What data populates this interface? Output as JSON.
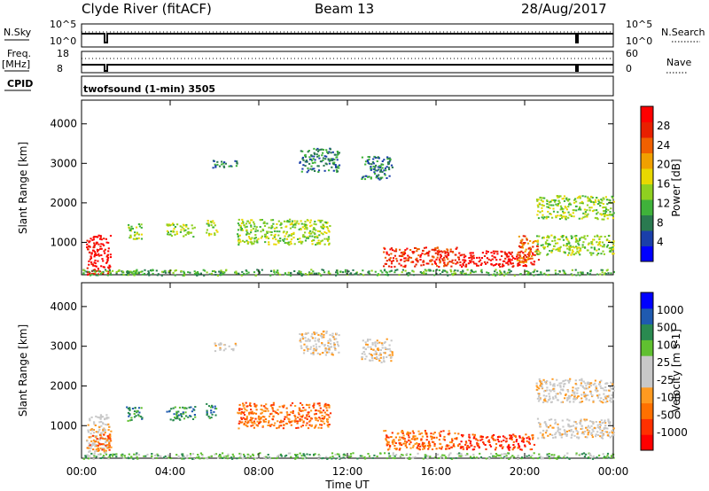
{
  "header": {
    "radar": "Clyde River (fitACF)",
    "beam": "Beam 13",
    "date": "28/Aug/2017"
  },
  "top_panels": {
    "nsky_label": "N.Sky",
    "nsky_ticks": [
      "10^5",
      "10^0"
    ],
    "nsearch_label": "N.Search",
    "nsearch_ticks": [
      "10^5",
      "10^0"
    ],
    "freq_label": "Freq.",
    "freq_unit": "[MHz]",
    "freq_ticks": [
      "18",
      "8"
    ],
    "nave_label": "Nave",
    "nave_ticks": [
      "60",
      "0"
    ],
    "cpid_label": "CPID",
    "cpid_text": "twofsound (1-min) 3505"
  },
  "chart_data": [
    {
      "type": "heatmap",
      "name": "power",
      "ylabel": "Slant Range [km]",
      "yticks": [
        "1000",
        "2000",
        "3000",
        "4000"
      ],
      "ylim": [
        180,
        4600
      ],
      "xlim": [
        0,
        24
      ],
      "colorbar_label": "Power [dB]",
      "colorbar_ticks": [
        "28",
        "24",
        "20",
        "16",
        "12",
        "8",
        "4"
      ],
      "colorbar_colors": [
        "#0000ff",
        "#1a3faa",
        "#2a7a50",
        "#3fb23a",
        "#8fd020",
        "#e8d800",
        "#f0a000",
        "#f06000",
        "#e82000",
        "#ff0000"
      ],
      "blobs": [
        {
          "t0": 0.2,
          "t1": 1.3,
          "r0": 200,
          "r1": 1200,
          "level": 9
        },
        {
          "t0": 1.8,
          "t1": 2.6,
          "r0": 200,
          "r1": 300,
          "level": 3
        },
        {
          "t0": 2.0,
          "t1": 2.7,
          "r0": 1100,
          "r1": 1500,
          "level": 4
        },
        {
          "t0": 3.8,
          "t1": 5.1,
          "r0": 1150,
          "r1": 1500,
          "level": 4
        },
        {
          "t0": 5.6,
          "t1": 6.1,
          "r0": 1200,
          "r1": 1600,
          "level": 4
        },
        {
          "t0": 7.0,
          "t1": 11.2,
          "r0": 950,
          "r1": 1600,
          "level": 4
        },
        {
          "t0": 5.9,
          "t1": 7.0,
          "r0": 2900,
          "r1": 3100,
          "level": 2
        },
        {
          "t0": 9.8,
          "t1": 11.6,
          "r0": 2800,
          "r1": 3400,
          "level": 2
        },
        {
          "t0": 12.6,
          "t1": 14.0,
          "r0": 2600,
          "r1": 3200,
          "level": 2
        },
        {
          "t0": 13.6,
          "t1": 17.0,
          "r0": 400,
          "r1": 900,
          "level": 8
        },
        {
          "t0": 17.0,
          "t1": 20.4,
          "r0": 400,
          "r1": 800,
          "level": 9
        },
        {
          "t0": 19.6,
          "t1": 20.6,
          "r0": 500,
          "r1": 1200,
          "level": 7
        },
        {
          "t0": 20.5,
          "t1": 24.0,
          "r0": 700,
          "r1": 1200,
          "level": 4
        },
        {
          "t0": 20.5,
          "t1": 24.0,
          "r0": 1600,
          "r1": 2200,
          "level": 4
        },
        {
          "t0": 0.0,
          "t1": 24.0,
          "r0": 180,
          "r1": 330,
          "level": 3
        }
      ]
    },
    {
      "type": "heatmap",
      "name": "velocity",
      "ylabel": "Slant Range [km]",
      "yticks": [
        "1000",
        "2000",
        "3000",
        "4000"
      ],
      "ylim": [
        180,
        4600
      ],
      "xlim": [
        0,
        24
      ],
      "xticks": [
        "00:00",
        "04:00",
        "08:00",
        "12:00",
        "16:00",
        "20:00",
        "00:00"
      ],
      "xlabel": "Time UT",
      "colorbar_label": "Velocity [m s-1]",
      "colorbar_ticks": [
        "1000",
        "500",
        "100",
        "25",
        "-25",
        "-100",
        "-500",
        "-1000"
      ],
      "colorbar_colors": [
        "#ff0000",
        "#ff3000",
        "#ff7000",
        "#ff9a20",
        "#c8c8c8",
        "#c8c8c8",
        "#60c030",
        "#2a8a50",
        "#1f5ab0",
        "#0000ff"
      ],
      "blobs": [
        {
          "t0": 0.2,
          "t1": 1.3,
          "r0": 200,
          "r1": 1300,
          "level": 4
        },
        {
          "t0": 0.2,
          "t1": 1.3,
          "r0": 400,
          "r1": 800,
          "level": 2
        },
        {
          "t0": 2.0,
          "t1": 2.7,
          "r0": 1100,
          "r1": 1500,
          "level": 7
        },
        {
          "t0": 3.8,
          "t1": 5.1,
          "r0": 1150,
          "r1": 1500,
          "level": 7
        },
        {
          "t0": 5.6,
          "t1": 6.1,
          "r0": 1200,
          "r1": 1600,
          "level": 7
        },
        {
          "t0": 7.0,
          "t1": 11.2,
          "r0": 950,
          "r1": 1600,
          "level": 2
        },
        {
          "t0": 5.9,
          "t1": 7.0,
          "r0": 2900,
          "r1": 3100,
          "level": 4
        },
        {
          "t0": 9.8,
          "t1": 11.6,
          "r0": 2800,
          "r1": 3400,
          "level": 4
        },
        {
          "t0": 12.6,
          "t1": 14.0,
          "r0": 2600,
          "r1": 3200,
          "level": 4
        },
        {
          "t0": 13.6,
          "t1": 17.0,
          "r0": 400,
          "r1": 900,
          "level": 2
        },
        {
          "t0": 17.0,
          "t1": 20.4,
          "r0": 400,
          "r1": 800,
          "level": 1
        },
        {
          "t0": 20.5,
          "t1": 24.0,
          "r0": 700,
          "r1": 1200,
          "level": 4
        },
        {
          "t0": 20.5,
          "t1": 24.0,
          "r0": 1600,
          "r1": 2200,
          "level": 4
        },
        {
          "t0": 0.0,
          "t1": 24.0,
          "r0": 180,
          "r1": 330,
          "level": 6
        }
      ]
    }
  ]
}
